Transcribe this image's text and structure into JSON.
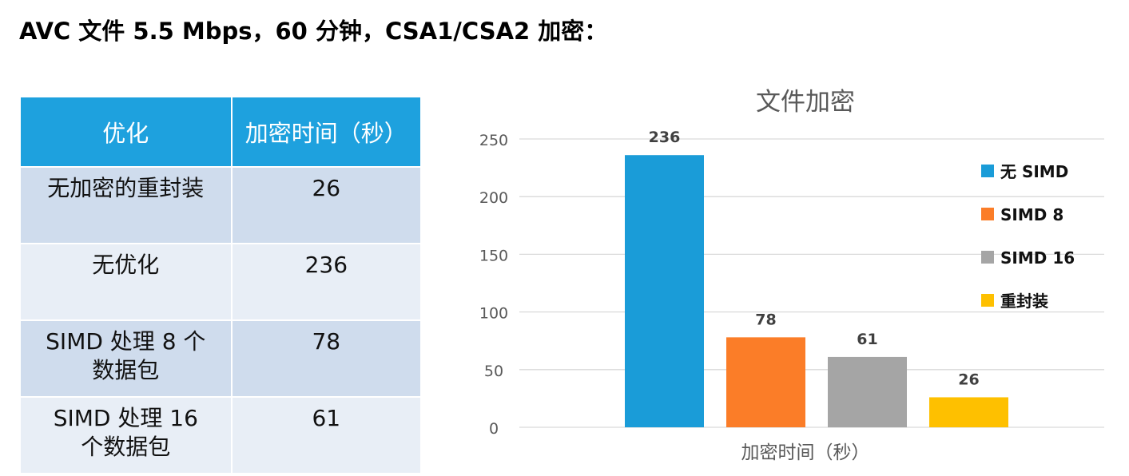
{
  "title": "AVC 文件 5.5 Mbps，60 分钟，CSA1/CSA2 加密：",
  "table": {
    "headers": [
      "优化",
      "加密时间（秒）"
    ],
    "rows": [
      {
        "label_lines": [
          "无加密的重封装"
        ],
        "value": "26"
      },
      {
        "label_lines": [
          "无优化"
        ],
        "value": "236"
      },
      {
        "label_lines": [
          "SIMD 处理 8 个",
          "数据包"
        ],
        "value": "78"
      },
      {
        "label_lines": [
          "SIMD 处理 16",
          "个数据包"
        ],
        "value": "61"
      }
    ]
  },
  "chart_data": {
    "type": "bar",
    "title": "文件加密",
    "xlabel": "加密时间（秒）",
    "ylabel": "",
    "ylim": [
      0,
      250
    ],
    "yticks": [
      0,
      50,
      100,
      150,
      200,
      250
    ],
    "grid": true,
    "legend_position": "right",
    "series": [
      {
        "name": "无 SIMD",
        "values": [
          236
        ],
        "color": "#1a9cd8"
      },
      {
        "name": "SIMD 8",
        "values": [
          78
        ],
        "color": "#fb7d28"
      },
      {
        "name": "SIMD 16",
        "values": [
          61
        ],
        "color": "#a5a5a5"
      },
      {
        "name": "重封装",
        "values": [
          26
        ],
        "color": "#fec000"
      }
    ]
  }
}
